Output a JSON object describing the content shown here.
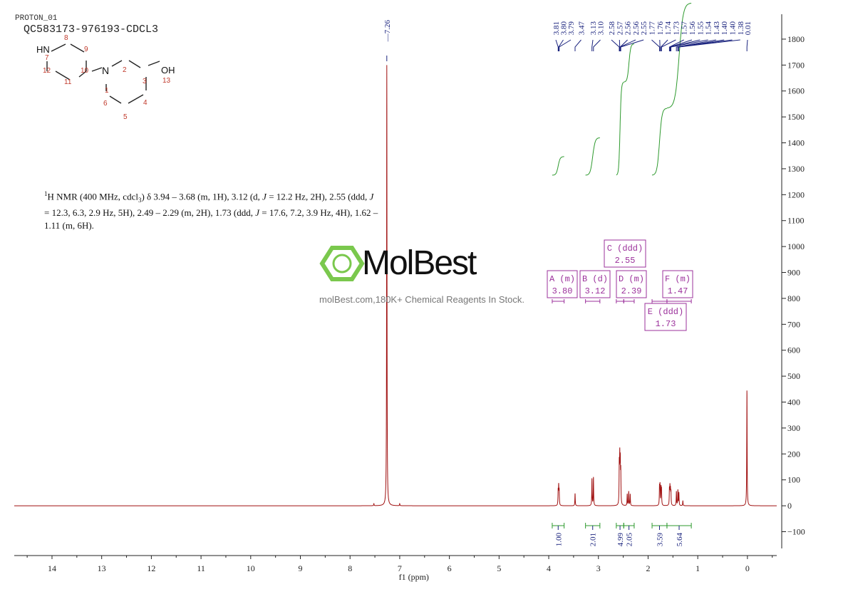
{
  "header": {
    "experiment": "PROTON_01",
    "sample": "QC583173-976193-CDCL3"
  },
  "description": {
    "parts": [
      "1",
      "H NMR (400 MHz, cdcl",
      "3",
      ") δ 3.94 – 3.68 (m, 1H), 3.12 (d, ",
      "J",
      " = 12.2 Hz, 2H), 2.55 (ddd, ",
      "J",
      " = 12.3, 6.3, 2.9 Hz, 5H), 2.49 – 2.29 (m, 2H), 1.73 (ddd, ",
      "J",
      " = 17.6, 7.2, 3.9 Hz, 4H), 1.62 – 1.11 (m, 6H)."
    ]
  },
  "structure": {
    "atoms": {
      "HN": "HN",
      "OH": "OH",
      "N": "N"
    },
    "numbers": [
      "1",
      "2",
      "3",
      "4",
      "5",
      "6",
      "7",
      "8",
      "9",
      "10",
      "11",
      "12",
      "13"
    ]
  },
  "watermark": {
    "name": "MolBest",
    "url": "molBest.com,180K+ Chemical Reagents In Stock.",
    "color": "#6cc33a"
  },
  "colors": {
    "spectrum": "#a01010",
    "peak_labels": "#1a237e",
    "integrals": "#2e9a2e",
    "multiplets": "#9b309b",
    "axis": "#222"
  },
  "chart_data": {
    "type": "line",
    "xlabel": "f1 (ppm)",
    "xlim": [
      14.76,
      -0.59
    ],
    "ylim": [
      -192,
      1896
    ],
    "x_ticks": [
      14,
      13,
      12,
      11,
      10,
      9,
      8,
      7,
      6,
      5,
      4,
      3,
      2,
      1,
      0
    ],
    "y_ticks": [
      1800,
      1700,
      1600,
      1500,
      1400,
      1300,
      1200,
      1100,
      1000,
      900,
      800,
      700,
      600,
      500,
      400,
      300,
      200,
      100,
      0,
      -100
    ],
    "y_axis_side": "right",
    "peaks": [
      {
        "ppm": 7.26,
        "height": 1700
      },
      {
        "ppm": 0.01,
        "height": 450
      },
      {
        "ppm": 7.52,
        "height": 8
      },
      {
        "ppm": 7.0,
        "height": 8
      },
      {
        "ppm": 3.81,
        "height": 55
      },
      {
        "ppm": 3.8,
        "height": 70
      },
      {
        "ppm": 3.79,
        "height": 55
      },
      {
        "ppm": 3.47,
        "height": 48
      },
      {
        "ppm": 3.13,
        "height": 105
      },
      {
        "ppm": 3.1,
        "height": 110
      },
      {
        "ppm": 2.58,
        "height": 150
      },
      {
        "ppm": 2.57,
        "height": 170
      },
      {
        "ppm": 2.56,
        "height": 150
      },
      {
        "ppm": 2.55,
        "height": 120
      },
      {
        "ppm": 2.42,
        "height": 45
      },
      {
        "ppm": 2.39,
        "height": 55
      },
      {
        "ppm": 2.36,
        "height": 45
      },
      {
        "ppm": 1.77,
        "height": 70
      },
      {
        "ppm": 1.76,
        "height": 75
      },
      {
        "ppm": 1.74,
        "height": 65
      },
      {
        "ppm": 1.73,
        "height": 60
      },
      {
        "ppm": 1.57,
        "height": 60
      },
      {
        "ppm": 1.56,
        "height": 65
      },
      {
        "ppm": 1.55,
        "height": 55
      },
      {
        "ppm": 1.54,
        "height": 50
      },
      {
        "ppm": 1.43,
        "height": 55
      },
      {
        "ppm": 1.4,
        "height": 60
      },
      {
        "ppm": 1.38,
        "height": 50
      },
      {
        "ppm": 1.3,
        "height": 20
      }
    ],
    "peak_labels": [
      "3.81",
      "3.80",
      "3.79",
      "3.47",
      "3.13",
      "3.10",
      "2.58",
      "2.57",
      "2.56",
      "2.56",
      "2.55",
      "1.77",
      "1.76",
      "1.74",
      "1.73",
      "1.57",
      "1.56",
      "1.55",
      "1.54",
      "1.43",
      "1.40",
      "1.40",
      "1.38",
      "0.01"
    ],
    "solvent_label": "7.26",
    "integrals": [
      {
        "from": 3.93,
        "to": 3.69,
        "value": "1.00"
      },
      {
        "from": 3.26,
        "to": 2.97,
        "value": "2.01"
      },
      {
        "from": 2.64,
        "to": 2.49,
        "value": "4.99"
      },
      {
        "from": 2.49,
        "to": 2.28,
        "value": "2.05"
      },
      {
        "from": 1.92,
        "to": 1.62,
        "value": "3.59"
      },
      {
        "from": 1.62,
        "to": 1.13,
        "value": "5.64"
      }
    ],
    "multiplets": [
      {
        "label": "A (m)",
        "shift": "3.80",
        "from": 3.93,
        "to": 3.69
      },
      {
        "label": "B (d)",
        "shift": "3.12",
        "from": 3.26,
        "to": 2.97
      },
      {
        "label": "C (ddd)",
        "shift": "2.55",
        "from": 2.64,
        "to": 2.49
      },
      {
        "label": "D (m)",
        "shift": "2.39",
        "from": 2.49,
        "to": 2.28
      },
      {
        "label": "E (ddd)",
        "shift": "1.73",
        "from": 1.92,
        "to": 1.62
      },
      {
        "label": "F (m)",
        "shift": "1.47",
        "from": 1.62,
        "to": 1.13
      }
    ]
  }
}
